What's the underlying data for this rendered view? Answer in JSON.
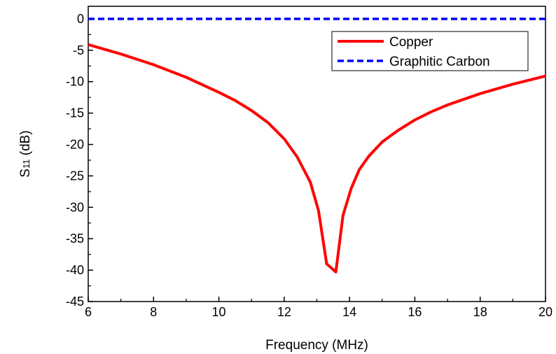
{
  "chart_data": {
    "type": "line",
    "xlabel": "Frequency (MHz)",
    "ylabel_main": "S",
    "ylabel_sub": "11",
    "ylabel_unit": " (dB)",
    "xlim": [
      6,
      20
    ],
    "ylim": [
      -45,
      2
    ],
    "xticks": [
      6,
      8,
      10,
      12,
      14,
      16,
      18,
      20
    ],
    "xtick_labels": [
      "6",
      "8",
      "10",
      "12",
      "14",
      "16",
      "18",
      "20"
    ],
    "yticks": [
      0,
      -5,
      -10,
      -15,
      -20,
      -25,
      -30,
      -35,
      -40,
      -45
    ],
    "ytick_labels": [
      "0",
      "-5",
      "-10",
      "-15",
      "-20",
      "-25",
      "-30",
      "-35",
      "-40",
      "-45"
    ],
    "grid": false,
    "legend_position": "top-right",
    "series": [
      {
        "name": "Copper",
        "color": "#ff0000",
        "style": "solid",
        "x": [
          6,
          7,
          8,
          9,
          10,
          10.5,
          11,
          11.5,
          12,
          12.4,
          12.8,
          13.05,
          13.3,
          13.58,
          13.8,
          14.05,
          14.3,
          14.6,
          15,
          15.5,
          16,
          16.5,
          17,
          18,
          19,
          20
        ],
        "y": [
          -4.1,
          -5.6,
          -7.3,
          -9.3,
          -11.7,
          -13.0,
          -14.6,
          -16.5,
          -19.1,
          -22.0,
          -26.0,
          -30.5,
          -39.0,
          -40.3,
          -31.3,
          -27.0,
          -24.0,
          -21.8,
          -19.6,
          -17.7,
          -16.1,
          -14.8,
          -13.7,
          -11.9,
          -10.4,
          -9.1
        ]
      },
      {
        "name": "Graphitic Carbon",
        "color": "#0000ff",
        "style": "dashed",
        "x": [
          6,
          20
        ],
        "y": [
          0,
          0
        ]
      }
    ]
  }
}
